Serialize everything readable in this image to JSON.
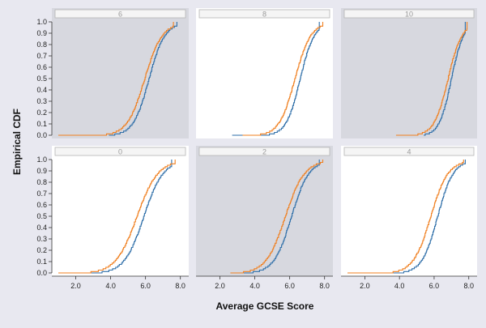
{
  "chart_data": {
    "type": "line",
    "subtype": "empirical-cdf-facets",
    "ylabel": "Empirical CDF",
    "xlabel": "Average GCSE Score",
    "colors": {
      "page_bg": "#e8e8f0",
      "panel_shaded": "#d7d8df",
      "panel_plain": "#ffffff",
      "strip_bg": "#f5f5f5",
      "series_blue": "#2e6ea8",
      "series_orange": "#f07f1f"
    },
    "x_ticks": [
      "2.0",
      "4.0",
      "6.0",
      "8.0"
    ],
    "y_ticks": [
      "0.0",
      "0.1",
      "0.2",
      "0.3",
      "0.4",
      "0.5",
      "0.6",
      "0.7",
      "0.8",
      "0.9",
      "1.0"
    ],
    "xlim": [
      1.0,
      8.2
    ],
    "ylim": [
      0,
      1
    ],
    "grid": false,
    "legend": "none",
    "facets": [
      {
        "label": "6",
        "shaded": true,
        "row": 0,
        "col": 0,
        "series": [
          {
            "color": "blue",
            "min": 3.9,
            "median": 6.2,
            "spread": 0.45,
            "max": 7.8
          },
          {
            "color": "orange",
            "min": 1.0,
            "median": 5.95,
            "spread": 0.5,
            "max": 7.6
          }
        ]
      },
      {
        "label": "8",
        "shaded": false,
        "row": 0,
        "col": 1,
        "series": [
          {
            "color": "blue",
            "min": 2.7,
            "median": 6.6,
            "spread": 0.4,
            "max": 7.7
          },
          {
            "color": "orange",
            "min": 3.3,
            "median": 6.3,
            "spread": 0.45,
            "max": 7.9
          }
        ]
      },
      {
        "label": "10",
        "shaded": true,
        "row": 0,
        "col": 2,
        "series": [
          {
            "color": "blue",
            "min": 5.4,
            "median": 7.0,
            "spread": 0.35,
            "max": 7.8
          },
          {
            "color": "orange",
            "min": 3.8,
            "median": 6.8,
            "spread": 0.4,
            "max": 7.9
          }
        ]
      },
      {
        "label": "0",
        "shaded": false,
        "row": 1,
        "col": 0,
        "series": [
          {
            "color": "blue",
            "min": 2.8,
            "median": 5.9,
            "spread": 0.55,
            "max": 7.5
          },
          {
            "color": "orange",
            "min": 1.0,
            "median": 5.5,
            "spread": 0.6,
            "max": 7.7
          }
        ]
      },
      {
        "label": "2",
        "shaded": true,
        "row": 1,
        "col": 1,
        "series": [
          {
            "color": "blue",
            "min": 3.2,
            "median": 6.1,
            "spread": 0.5,
            "max": 7.7
          },
          {
            "color": "orange",
            "min": 2.6,
            "median": 5.75,
            "spread": 0.55,
            "max": 7.9
          }
        ]
      },
      {
        "label": "4",
        "shaded": false,
        "row": 1,
        "col": 2,
        "series": [
          {
            "color": "blue",
            "min": 3.6,
            "median": 6.2,
            "spread": 0.45,
            "max": 7.8
          },
          {
            "color": "orange",
            "min": 1.0,
            "median": 5.8,
            "spread": 0.5,
            "max": 7.7
          }
        ]
      }
    ]
  }
}
